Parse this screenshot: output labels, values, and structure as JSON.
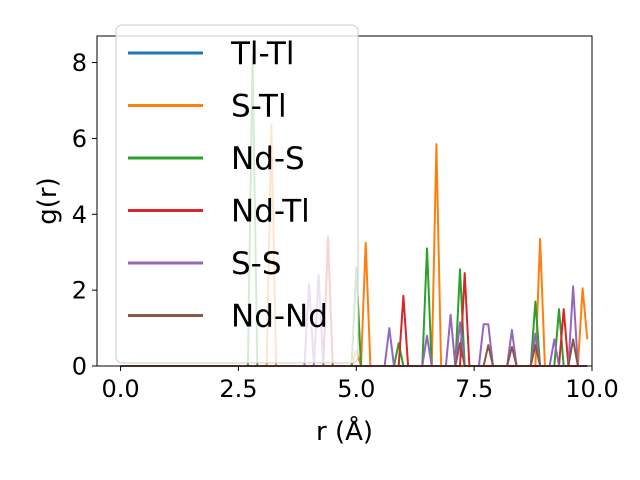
{
  "chart_data": {
    "type": "line",
    "title": "",
    "xlabel": "r (Å)",
    "ylabel": "g(r)",
    "xlim": [
      -0.5,
      10.0
    ],
    "ylim": [
      0,
      8.7
    ],
    "xticks": [
      0.0,
      2.5,
      5.0,
      7.5,
      10.0
    ],
    "xtick_labels": [
      "0.0",
      "2.5",
      "5.0",
      "7.5",
      "10.0"
    ],
    "yticks": [
      0,
      2,
      4,
      6,
      8
    ],
    "ytick_labels": [
      "0",
      "2",
      "4",
      "6",
      "8"
    ],
    "grid": false,
    "legend_position": "upper-left",
    "series": [
      {
        "name": "Tl-Tl",
        "color": "#1f77b4",
        "points": [
          [
            0.0,
            0
          ],
          [
            9.9,
            0
          ]
        ]
      },
      {
        "name": "S-Tl",
        "color": "#ff7f0e",
        "points": [
          [
            0.0,
            0
          ],
          [
            3.1,
            0
          ],
          [
            3.2,
            6.35
          ],
          [
            3.3,
            0
          ],
          [
            4.9,
            0
          ],
          [
            5.0,
            0.4
          ],
          [
            5.1,
            0
          ],
          [
            5.2,
            3.25
          ],
          [
            5.3,
            0
          ],
          [
            6.6,
            0
          ],
          [
            6.7,
            5.85
          ],
          [
            6.8,
            0
          ],
          [
            8.8,
            0
          ],
          [
            8.9,
            3.35
          ],
          [
            9.0,
            0
          ],
          [
            9.7,
            0
          ],
          [
            9.8,
            2.05
          ],
          [
            9.9,
            0.7
          ]
        ]
      },
      {
        "name": "Nd-S",
        "color": "#2ca02c",
        "points": [
          [
            0.0,
            0
          ],
          [
            2.7,
            0
          ],
          [
            2.8,
            8.2
          ],
          [
            2.9,
            0
          ],
          [
            4.9,
            0
          ],
          [
            5.0,
            2.6
          ],
          [
            5.1,
            0
          ],
          [
            5.8,
            0
          ],
          [
            5.9,
            0.6
          ],
          [
            6.0,
            0
          ],
          [
            6.4,
            0
          ],
          [
            6.5,
            3.1
          ],
          [
            6.6,
            0
          ],
          [
            7.1,
            0
          ],
          [
            7.2,
            2.55
          ],
          [
            7.3,
            0
          ],
          [
            8.7,
            0
          ],
          [
            8.8,
            1.7
          ],
          [
            8.9,
            0
          ],
          [
            9.2,
            0
          ],
          [
            9.3,
            1.5
          ],
          [
            9.4,
            0
          ],
          [
            9.9,
            0
          ]
        ]
      },
      {
        "name": "Nd-Tl",
        "color": "#d62728",
        "points": [
          [
            0.0,
            0
          ],
          [
            4.3,
            0
          ],
          [
            4.4,
            3.4
          ],
          [
            4.5,
            0
          ],
          [
            5.9,
            0
          ],
          [
            6.0,
            1.85
          ],
          [
            6.1,
            0
          ],
          [
            7.2,
            0
          ],
          [
            7.3,
            2.45
          ],
          [
            7.4,
            0
          ],
          [
            9.3,
            0
          ],
          [
            9.4,
            1.5
          ],
          [
            9.5,
            0
          ],
          [
            9.9,
            0
          ]
        ]
      },
      {
        "name": "S-S",
        "color": "#9467bd",
        "points": [
          [
            0.0,
            0
          ],
          [
            3.9,
            0
          ],
          [
            4.0,
            2.15
          ],
          [
            4.1,
            0
          ],
          [
            4.2,
            2.4
          ],
          [
            4.3,
            0
          ],
          [
            5.6,
            0
          ],
          [
            5.7,
            1.0
          ],
          [
            5.8,
            0
          ],
          [
            6.4,
            0
          ],
          [
            6.5,
            0.8
          ],
          [
            6.6,
            0
          ],
          [
            6.9,
            0
          ],
          [
            7.0,
            1.35
          ],
          [
            7.1,
            0
          ],
          [
            7.2,
            1.15
          ],
          [
            7.3,
            0
          ],
          [
            7.6,
            0
          ],
          [
            7.7,
            1.1
          ],
          [
            7.8,
            1.1
          ],
          [
            7.9,
            0
          ],
          [
            8.2,
            0
          ],
          [
            8.3,
            0.95
          ],
          [
            8.4,
            0
          ],
          [
            8.7,
            0
          ],
          [
            8.8,
            0.85
          ],
          [
            8.9,
            0
          ],
          [
            9.1,
            0
          ],
          [
            9.2,
            0.7
          ],
          [
            9.3,
            0
          ],
          [
            9.5,
            0
          ],
          [
            9.6,
            2.1
          ],
          [
            9.7,
            0
          ],
          [
            9.9,
            0
          ]
        ]
      },
      {
        "name": "Nd-Nd",
        "color": "#8c564b",
        "points": [
          [
            0.0,
            0
          ],
          [
            7.1,
            0
          ],
          [
            7.2,
            0.6
          ],
          [
            7.3,
            0
          ],
          [
            7.7,
            0
          ],
          [
            7.8,
            0.55
          ],
          [
            7.9,
            0
          ],
          [
            8.2,
            0
          ],
          [
            8.3,
            0.5
          ],
          [
            8.4,
            0
          ],
          [
            8.7,
            0
          ],
          [
            8.8,
            0.55
          ],
          [
            8.9,
            0
          ],
          [
            9.5,
            0
          ],
          [
            9.6,
            0.7
          ],
          [
            9.7,
            0
          ],
          [
            9.9,
            0
          ]
        ]
      }
    ]
  }
}
